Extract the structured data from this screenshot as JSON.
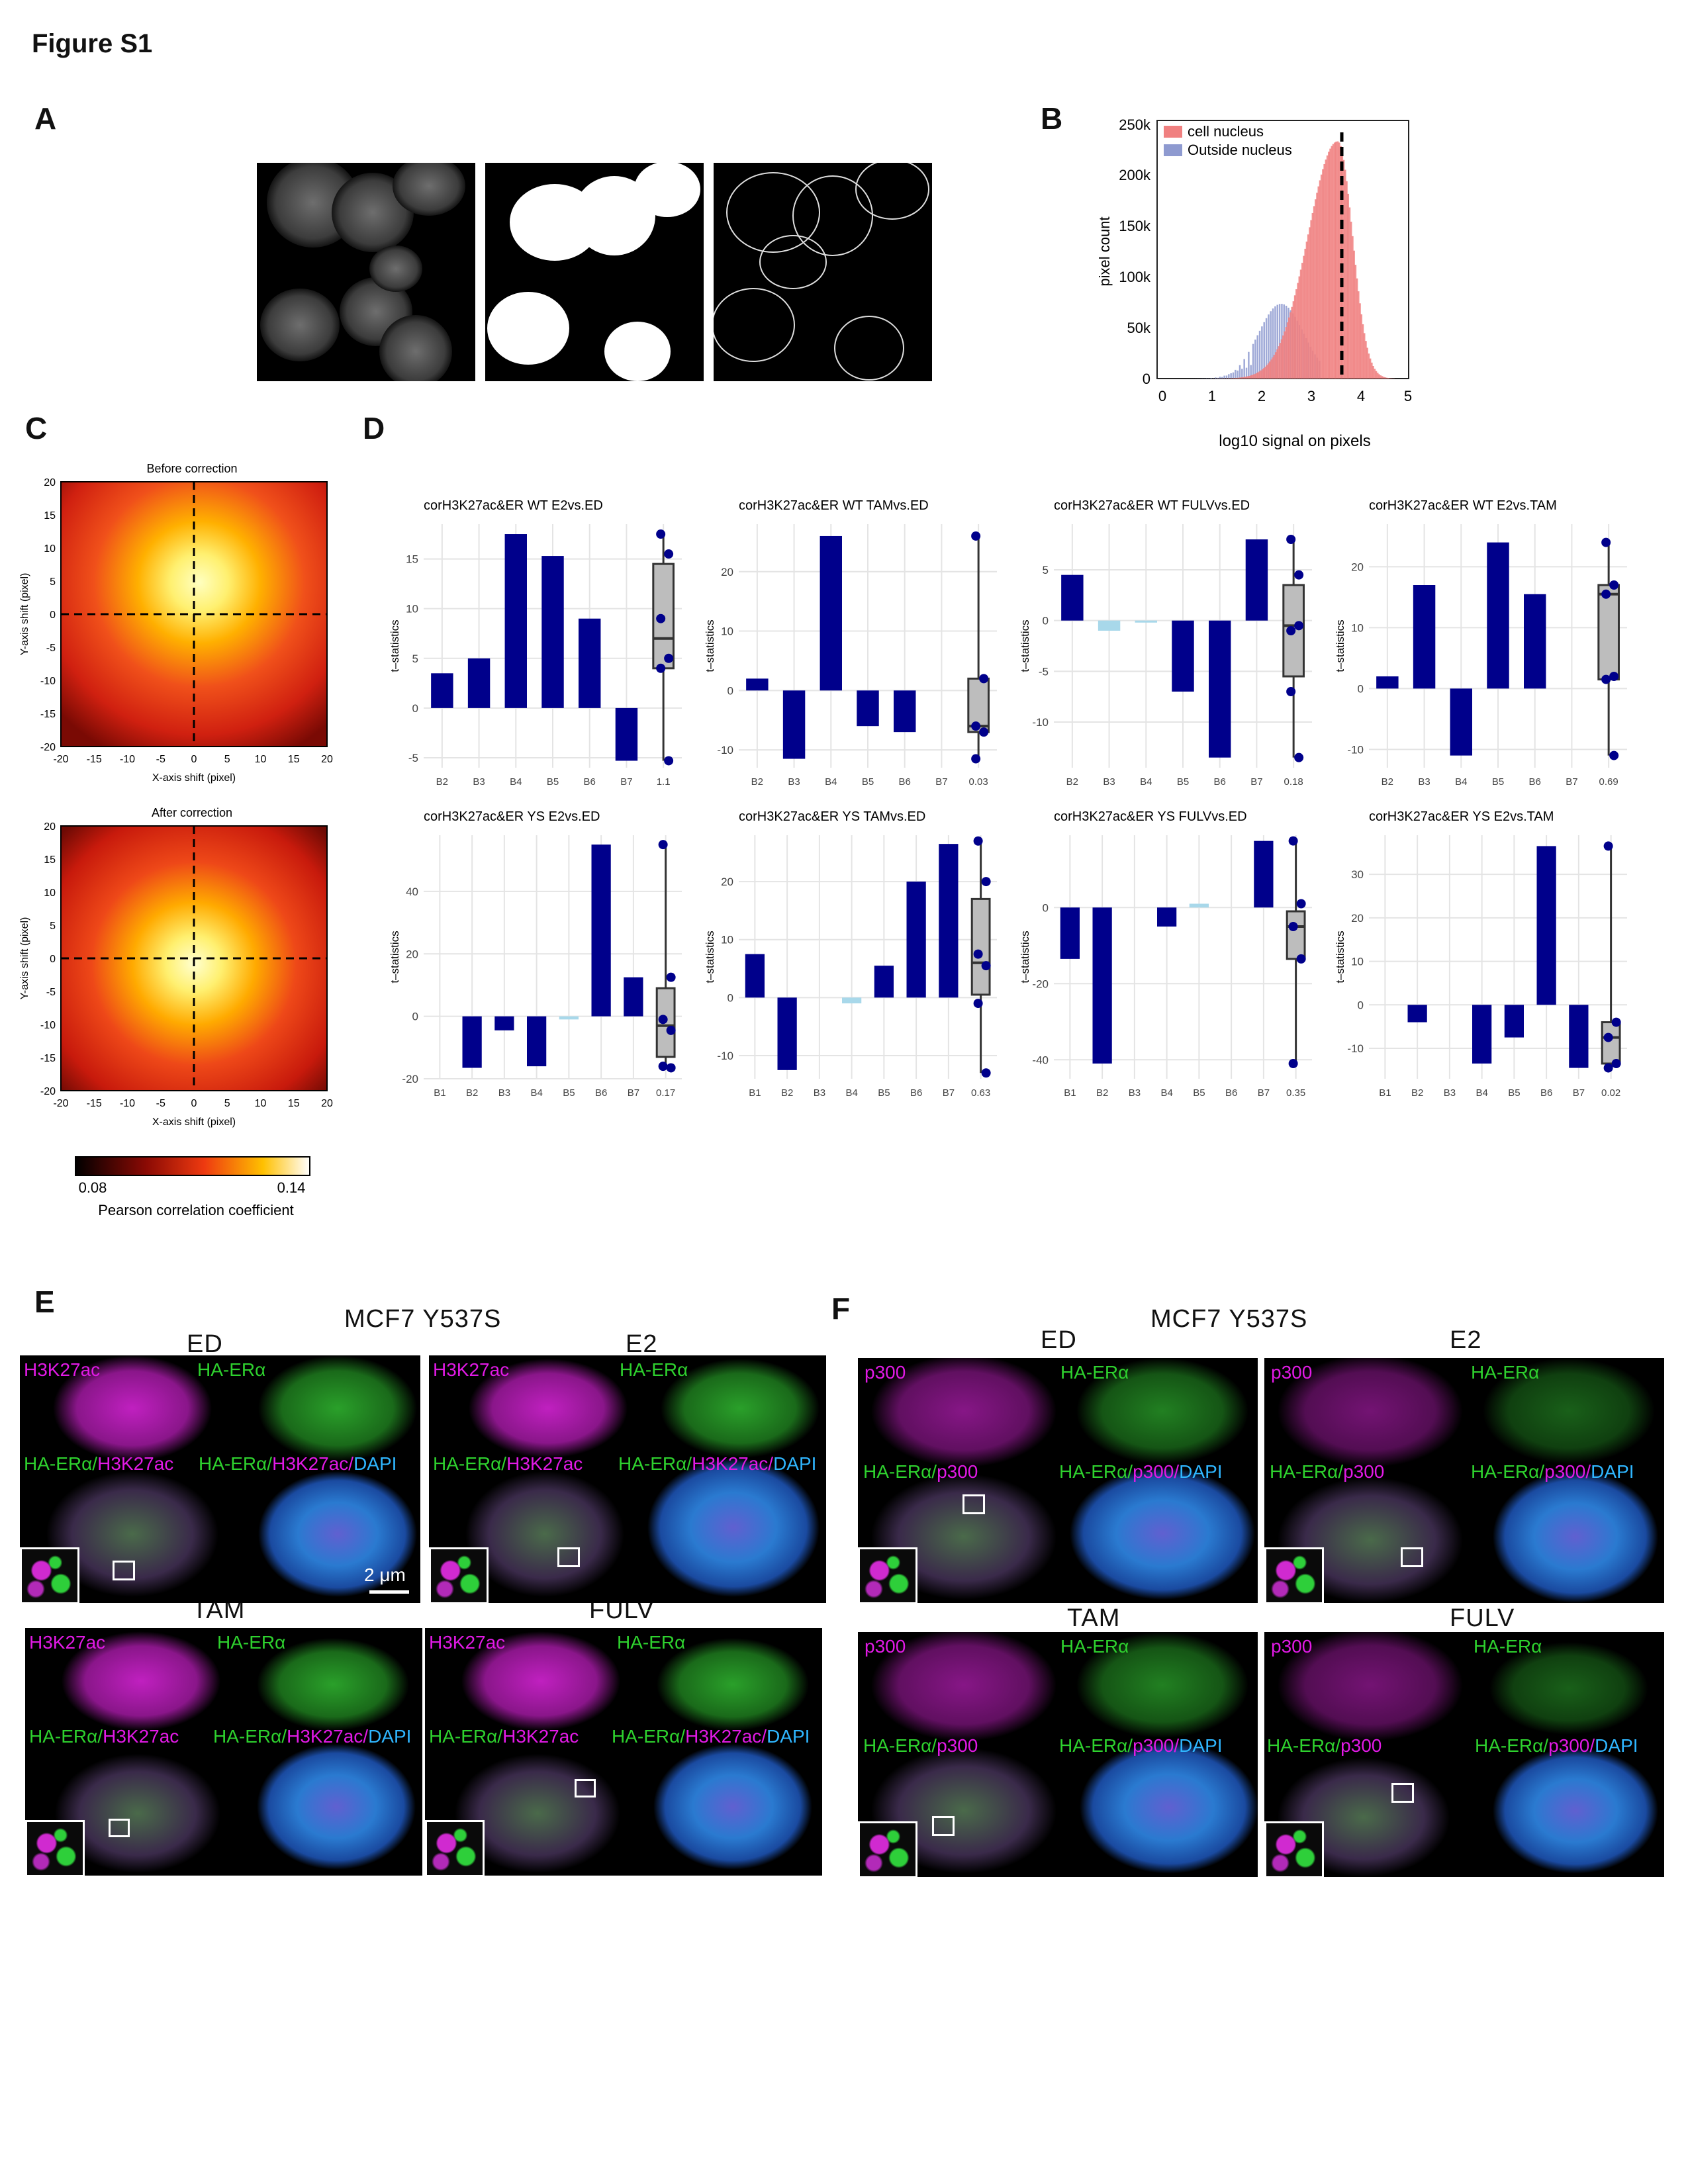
{
  "figure_title": "Figure S1",
  "panels": {
    "A": "A",
    "B": "B",
    "C": "C",
    "D": "D",
    "E": "E",
    "F": "F"
  },
  "panel_b": {
    "legend": [
      "cell nucleus",
      "Outside nucleus"
    ],
    "colors": {
      "nucleus": "#f08080",
      "outside": "#8e9ad0"
    },
    "xlabel": "log10 signal on pixels",
    "ylabel": "pixel count",
    "yticks": [
      "0",
      "50k",
      "100k",
      "150k",
      "200k",
      "250k"
    ],
    "xticks": [
      "0",
      "1",
      "2",
      "3",
      "4",
      "5"
    ]
  },
  "panel_c": {
    "titles": [
      "Before correction",
      "After correction"
    ],
    "xlabel": "X-axis shift (pixel)",
    "ylabel": "Y-axis shift (pixel)",
    "ticks": [
      "-20",
      "-15",
      "-10",
      "-5",
      "0",
      "5",
      "10",
      "15",
      "20"
    ],
    "ticks_y": [
      "20",
      "15",
      "10",
      "5",
      "0",
      "-5",
      "-10",
      "-15",
      "-20"
    ],
    "colorbar_min": "0.08",
    "colorbar_max": "0.14",
    "colorbar_label": "Pearson correlation coefficient"
  },
  "chart_data": [
    {
      "type": "bar",
      "title": "corH3K27ac&ER WT E2vs.ED",
      "ylabel": "t–statistics",
      "categories": [
        "B2",
        "B3",
        "B4",
        "B5",
        "B6",
        "B7",
        "1.1"
      ],
      "values": [
        3.5,
        5,
        17.5,
        15.3,
        9,
        -5.3,
        null
      ],
      "ylim": [
        -6,
        18.5
      ],
      "yticks": [
        -5,
        0,
        5,
        10,
        15
      ],
      "box": {
        "q1": 4,
        "median": 7,
        "q3": 14.5,
        "min": -5.3,
        "max": 17.5
      },
      "points": [
        17.5,
        15.5,
        9,
        5,
        4,
        -5.3
      ]
    },
    {
      "type": "bar",
      "title": "corH3K27ac&ER WT TAMvs.ED",
      "ylabel": "t–statistics",
      "categories": [
        "B2",
        "B3",
        "B4",
        "B5",
        "B6",
        "B7",
        "0.03"
      ],
      "values": [
        2,
        -11.5,
        26,
        -6,
        -7,
        null,
        null
      ],
      "ylim": [
        -13,
        28
      ],
      "yticks": [
        -10,
        0,
        10,
        20
      ],
      "box": {
        "q1": -7,
        "median": -6,
        "q3": 2,
        "min": -11.5,
        "max": 26
      },
      "points": [
        26,
        2,
        -6,
        -7,
        -11.5
      ]
    },
    {
      "type": "bar",
      "title": "corH3K27ac&ER WT FULVvs.ED",
      "ylabel": "t–statistics",
      "categories": [
        "B2",
        "B3",
        "B4",
        "B5",
        "B6",
        "B7",
        "0.18"
      ],
      "values": [
        4.5,
        -1,
        -0.2,
        -7,
        -13.5,
        8,
        null
      ],
      "ylim": [
        -14.5,
        9.5
      ],
      "yticks": [
        -10,
        -5,
        0,
        5
      ],
      "box": {
        "q1": -5.5,
        "median": -0.5,
        "q3": 3.5,
        "min": -13.5,
        "max": 8
      },
      "points": [
        8,
        4.5,
        -1,
        -0.5,
        -7,
        -13.5
      ]
    },
    {
      "type": "bar",
      "title": "corH3K27ac&ER WT E2vs.TAM",
      "ylabel": "t–statistics",
      "categories": [
        "B2",
        "B3",
        "B4",
        "B5",
        "B6",
        "B7",
        "0.69"
      ],
      "values": [
        2,
        17,
        -11,
        24,
        15.5,
        null,
        null
      ],
      "ylim": [
        -13,
        27
      ],
      "yticks": [
        -10,
        0,
        10,
        20
      ],
      "box": {
        "q1": 1.5,
        "median": 15.5,
        "q3": 17,
        "min": -11,
        "max": 24
      },
      "points": [
        24,
        17,
        15.5,
        2,
        1.5,
        -11
      ]
    },
    {
      "type": "bar",
      "title": "corH3K27ac&ER YS E2vs.ED",
      "ylabel": "t–statistics",
      "categories": [
        "B1",
        "B2",
        "B3",
        "B4",
        "B5",
        "B6",
        "B7",
        "0.17"
      ],
      "values": [
        null,
        -16.5,
        -4.5,
        -16,
        -1,
        55,
        12.5,
        null
      ],
      "ylim": [
        -20,
        58
      ],
      "yticks": [
        -20,
        0,
        20,
        40
      ],
      "box": {
        "q1": -13,
        "median": -3,
        "q3": 9,
        "min": -16.5,
        "max": 55
      },
      "points": [
        55,
        12.5,
        -1,
        -4.5,
        -16,
        -16.5
      ]
    },
    {
      "type": "bar",
      "title": "corH3K27ac&ER YS TAMvs.ED",
      "ylabel": "t–statistics",
      "categories": [
        "B1",
        "B2",
        "B3",
        "B4",
        "B5",
        "B6",
        "B7",
        "0.63"
      ],
      "values": [
        7.5,
        -12.5,
        null,
        -1,
        5.5,
        20,
        26.5,
        null
      ],
      "ylim": [
        -14,
        28
      ],
      "yticks": [
        -10,
        0,
        10,
        20
      ],
      "box": {
        "q1": 0.5,
        "median": 6,
        "q3": 17,
        "min": -13,
        "max": 27
      },
      "points": [
        27,
        20,
        7.5,
        5.5,
        -1,
        -13
      ]
    },
    {
      "type": "bar",
      "title": "corH3K27ac&ER YS FULVvs.ED",
      "ylabel": "t–statistics",
      "categories": [
        "B1",
        "B2",
        "B3",
        "B4",
        "B5",
        "B6",
        "B7",
        "0.35"
      ],
      "values": [
        -13.5,
        -41,
        null,
        -5,
        1,
        null,
        17.5,
        null
      ],
      "ylim": [
        -45,
        19
      ],
      "yticks": [
        -40,
        -20,
        0
      ],
      "box": {
        "q1": -13.5,
        "median": -5,
        "q3": -1,
        "min": -41,
        "max": 17.5
      },
      "points": [
        17.5,
        1,
        -5,
        -13.5,
        -41
      ]
    },
    {
      "type": "bar",
      "title": "corH3K27ac&ER YS E2vs.TAM",
      "ylabel": "t–statistics",
      "categories": [
        "B1",
        "B2",
        "B3",
        "B4",
        "B5",
        "B6",
        "B7",
        "0.02"
      ],
      "values": [
        null,
        -4,
        null,
        -13.5,
        -7.5,
        36.5,
        -14.5,
        null
      ],
      "ylim": [
        -17,
        39
      ],
      "yticks": [
        -10,
        0,
        10,
        20,
        30
      ],
      "box": {
        "q1": -13.5,
        "median": -7.5,
        "q3": -4,
        "min": -14.5,
        "max": 36.5
      },
      "points": [
        36.5,
        -4,
        -7.5,
        -13.5,
        -14.5
      ]
    }
  ],
  "panel_e": {
    "header": "MCF7 Y537S",
    "conditions": [
      "ED",
      "E2",
      "TAM",
      "FULV"
    ],
    "label_h3k27ac": "H3K27ac",
    "label_haer": "HA-ERα",
    "label_merge_a": "HA-ERα/",
    "label_merge_b": "H3K27ac",
    "label_merge_c": "/",
    "label_merge_d": "DAPI",
    "scalebar": "2 μm"
  },
  "panel_f": {
    "header": "MCF7 Y537S",
    "conditions": [
      "ED",
      "E2",
      "TAM",
      "FULV"
    ],
    "label_p300": "p300",
    "label_haer": "HA-ERα",
    "label_merge_a": "HA-ERα/",
    "label_merge_b": "p300",
    "label_merge_c": "/",
    "label_merge_d": "DAPI"
  }
}
